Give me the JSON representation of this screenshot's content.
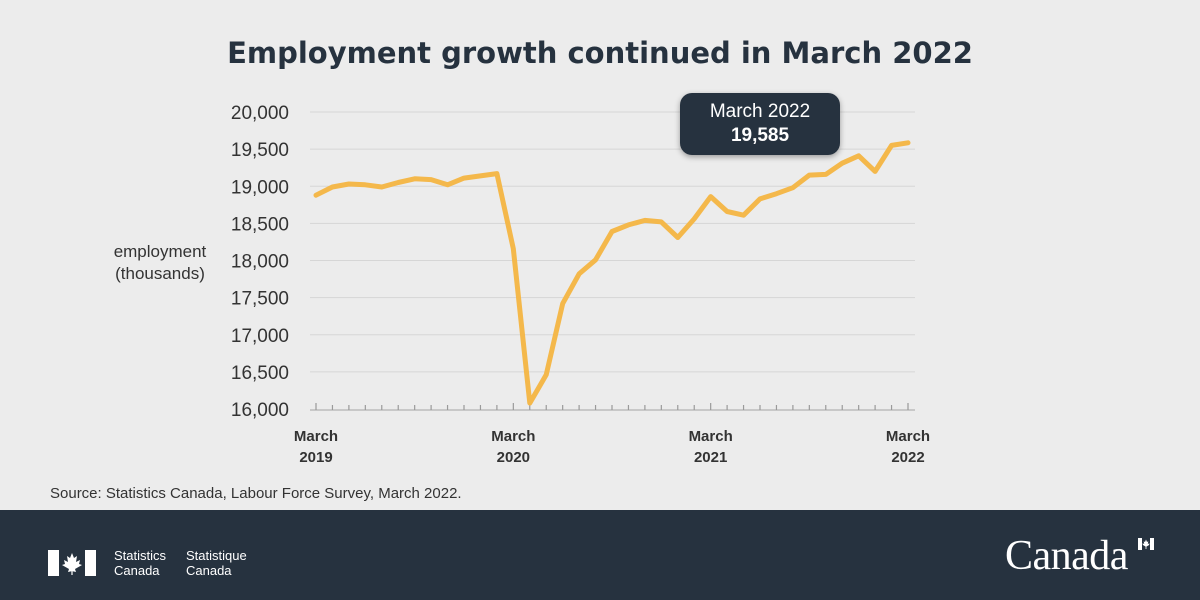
{
  "title": "Employment growth continued in March 2022",
  "ylabel": [
    "employment",
    "(thousands)"
  ],
  "callout": {
    "line1": "March 2022",
    "line2": "19,585"
  },
  "source": "Source: Statistics Canada, Labour Force Survey, March 2022.",
  "footer": {
    "agency_en": [
      "Statistics",
      "Canada"
    ],
    "agency_fr": [
      "Statistique",
      "Canada"
    ],
    "wordmark": "Canada"
  },
  "colors": {
    "line": "#f4b84b",
    "dark": "#26323f",
    "background": "#ececec",
    "grid": "#d6d6d6"
  },
  "chart_data": {
    "type": "line",
    "title": "Employment growth continued in March 2022",
    "ylabel": "employment (thousands)",
    "xlabel": "",
    "ylim": [
      16000,
      20000
    ],
    "yticks": [
      16000,
      16500,
      17000,
      17500,
      18000,
      18500,
      19000,
      19500,
      20000
    ],
    "ytick_labels": [
      "16,000",
      "16,500",
      "17,000",
      "17,500",
      "18,000",
      "18,500",
      "19,000",
      "19,500",
      "20,000"
    ],
    "xtick_labels": [
      {
        "month_index": 0,
        "line1": "March",
        "line2": "2019"
      },
      {
        "month_index": 12,
        "line1": "March",
        "line2": "2020"
      },
      {
        "month_index": 24,
        "line1": "March",
        "line2": "2021"
      },
      {
        "month_index": 36,
        "line1": "March",
        "line2": "2022"
      }
    ],
    "grid": true,
    "series": [
      {
        "x": [
          "2019-03",
          "2019-04",
          "2019-05",
          "2019-06",
          "2019-07",
          "2019-08",
          "2019-09",
          "2019-10",
          "2019-11",
          "2019-12",
          "2020-01",
          "2020-02",
          "2020-03",
          "2020-04",
          "2020-05",
          "2020-06",
          "2020-07",
          "2020-08",
          "2020-09",
          "2020-10",
          "2020-11",
          "2020-12",
          "2021-01",
          "2021-02",
          "2021-03",
          "2021-04",
          "2021-05",
          "2021-06",
          "2021-07",
          "2021-08",
          "2021-09",
          "2021-10",
          "2021-11",
          "2021-12",
          "2022-01",
          "2022-02",
          "2022-03"
        ],
        "values": [
          18880,
          18990,
          19030,
          19020,
          18990,
          19050,
          19100,
          19090,
          19020,
          19110,
          19140,
          19170,
          18160,
          16080,
          16460,
          17420,
          17820,
          18010,
          18390,
          18480,
          18540,
          18520,
          18310,
          18560,
          18860,
          18660,
          18610,
          18830,
          18900,
          18980,
          19150,
          19160,
          19310,
          19410,
          19200,
          19550,
          19585
        ]
      }
    ]
  }
}
